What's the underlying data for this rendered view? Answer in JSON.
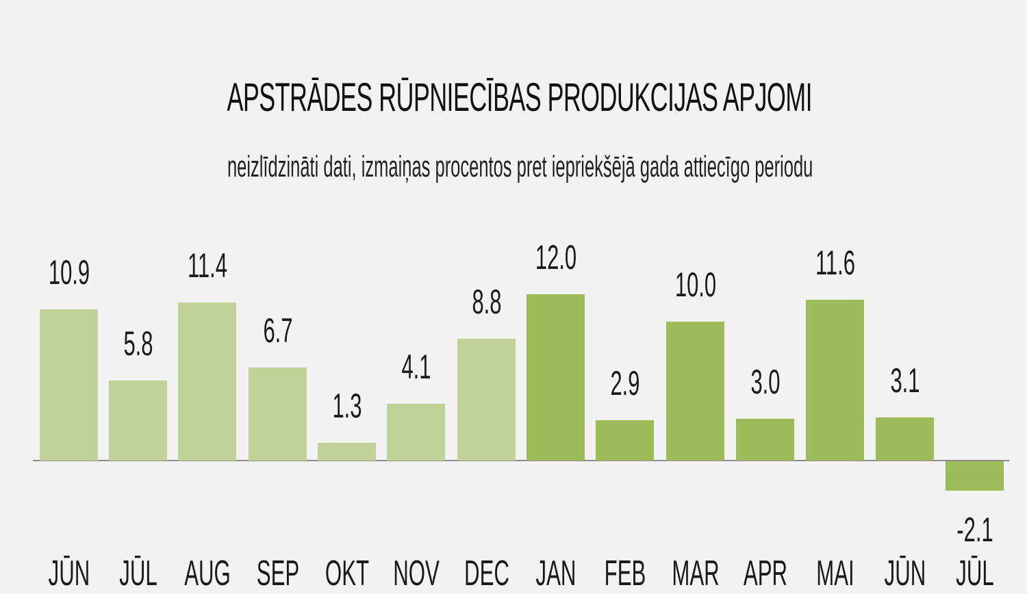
{
  "header": {
    "title": "APSTRĀDES RŪPNIECĪBAS PRODUKCIJAS APJOMI",
    "subtitle": "neizlīdzināti dati, izmaiņas procentos pret iepriekšējā gada attiecīgo periodu"
  },
  "colors": {
    "background": "#f2f2f2",
    "previous_year_bars": "#c0d298",
    "current_year_bars": "#9cbb59",
    "axis_line": "#8c8c8c"
  },
  "bars": [
    {
      "label": "JŪN",
      "value": "10.9"
    },
    {
      "label": "JŪL",
      "value": "5.8"
    },
    {
      "label": "AUG",
      "value": "11.4"
    },
    {
      "label": "SEP",
      "value": "6.7"
    },
    {
      "label": "OKT",
      "value": "1.3"
    },
    {
      "label": "NOV",
      "value": "4.1"
    },
    {
      "label": "DEC",
      "value": "8.8"
    },
    {
      "label": "JAN",
      "value": "12.0"
    },
    {
      "label": "FEB",
      "value": "2.9"
    },
    {
      "label": "MAR",
      "value": "10.0"
    },
    {
      "label": "APR",
      "value": "3.0"
    },
    {
      "label": "MAI",
      "value": "11.6"
    },
    {
      "label": "JŪN",
      "value": "3.1"
    },
    {
      "label": "JŪL",
      "value": "-2.1"
    }
  ],
  "chart_data": {
    "type": "bar",
    "title": "APSTRĀDES RŪPNIECĪBAS PRODUKCIJAS APJOMI",
    "subtitle": "neizlīdzināti dati, izmaiņas procentos pret iepriekšējā gada attiecīgo periodu",
    "xlabel": "",
    "ylabel": "",
    "categories": [
      "JŪN",
      "JŪL",
      "AUG",
      "SEP",
      "OKT",
      "NOV",
      "DEC",
      "JAN",
      "FEB",
      "MAR",
      "APR",
      "MAI",
      "JŪN",
      "JŪL"
    ],
    "values": [
      10.9,
      5.8,
      11.4,
      6.7,
      1.3,
      4.1,
      8.8,
      12.0,
      2.9,
      10.0,
      3.0,
      11.6,
      3.1,
      -2.1
    ],
    "bar_colors": [
      "#c0d298",
      "#c0d298",
      "#c0d298",
      "#c0d298",
      "#c0d298",
      "#c0d298",
      "#c0d298",
      "#9cbb59",
      "#9cbb59",
      "#9cbb59",
      "#9cbb59",
      "#9cbb59",
      "#9cbb59",
      "#9cbb59"
    ],
    "data_labels": true,
    "grid": false,
    "y_axis_visible": false,
    "legend": null,
    "ylim": [
      -2.1,
      12.0
    ]
  }
}
